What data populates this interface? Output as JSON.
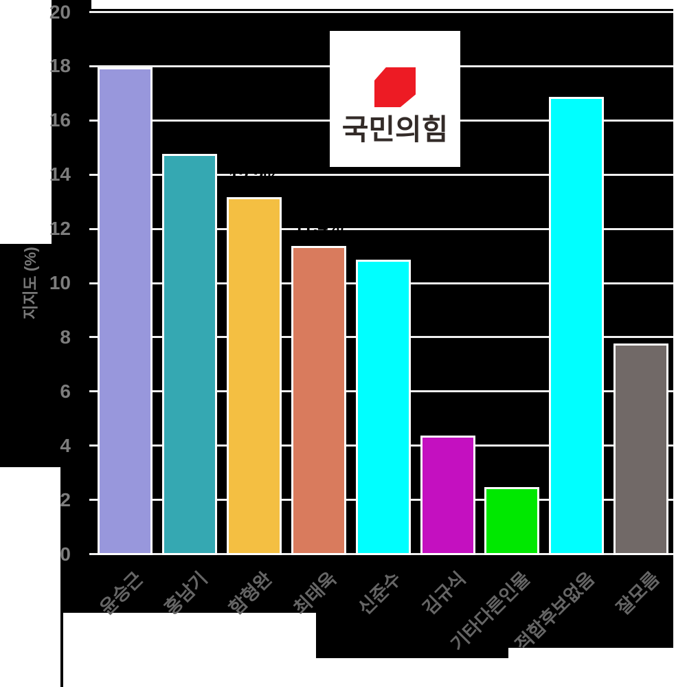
{
  "chart_data": {
    "type": "bar",
    "title": "",
    "ylabel": "지지도 (%)",
    "xlabel": "",
    "ylim": [
      0,
      20
    ],
    "yticks": [
      0,
      2,
      4,
      6,
      8,
      10,
      12,
      14,
      16,
      18,
      20
    ],
    "categories": [
      "윤승근",
      "홍남기",
      "함형완",
      "최태욱",
      "신준수",
      "김규식",
      "기타다른인물",
      "적합후보없음",
      "잘모름"
    ],
    "values": [
      18.0,
      14.8,
      13.2,
      11.4,
      10.9,
      4.4,
      2.5,
      16.9,
      7.8
    ],
    "value_labels": [
      "18.0%",
      "14.8%",
      "13.2%",
      "11.4%",
      "10.9%",
      "4.4%",
      "2.5%",
      "16.9%",
      "7.8%"
    ],
    "bar_colors": [
      "#9897dc",
      "#35a8b2",
      "#f4bf42",
      "#d97b5d",
      "#00ffff",
      "#c410c0",
      "#00e800",
      "#00ffff",
      "#716967"
    ],
    "bar_edge_color": "#ffffff",
    "grid": true,
    "gridline_color": "#f0f0f0",
    "plot_background": "#000000",
    "tick_label_color": "#7d7d7d",
    "category_label_color": "#666666",
    "legend_position": "none",
    "category_label_rotation_deg": 45
  },
  "logo": {
    "text": "국민의힘",
    "symbol": "ppp-red-emblem",
    "symbol_color": "#ed1b24",
    "text_color": "#332b28",
    "box_color": "#ffffff"
  }
}
